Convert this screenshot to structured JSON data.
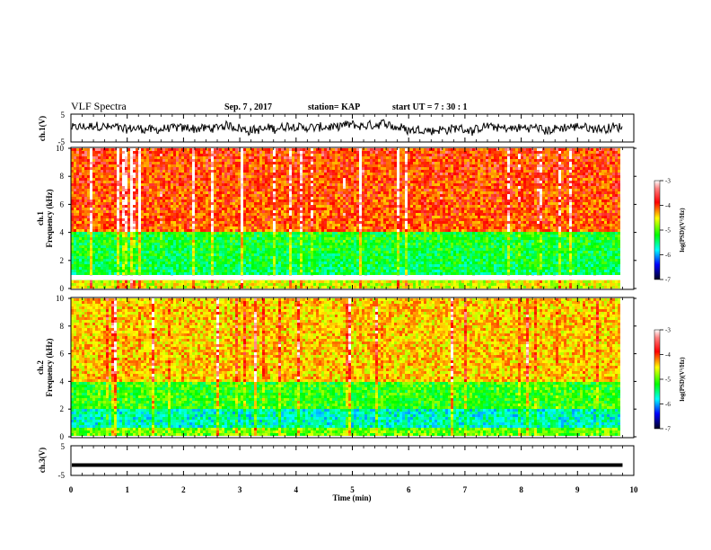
{
  "header": {
    "title": "VLF Spectra",
    "date": "Sep. 7 , 2017",
    "station": "station= KAP",
    "start": "start  UT  =   7 : 30 : 1"
  },
  "colorbar": {
    "label": "log(PSD)(V²/Hz)",
    "ticks": [
      "-3",
      "-4",
      "-5",
      "-6",
      "-7"
    ],
    "colors": [
      "#ffffff",
      "#ff0000",
      "#ffff00",
      "#00ff00",
      "#00ffff",
      "#0000ff",
      "#000000"
    ]
  },
  "chart_data": [
    {
      "type": "line",
      "ylabel": "ch.1(V)",
      "ylim": [
        -5,
        5
      ],
      "yticks": [
        "5",
        "-5"
      ],
      "xlim": [
        0,
        10
      ],
      "series_summary": "waveform oscillating about 0 V, amplitude ~±3 V"
    },
    {
      "type": "heatmap",
      "ylabel": "Frequency (kHz)",
      "channel_label": "ch.1",
      "ylim": [
        0,
        10
      ],
      "yticks": [
        "0",
        "2",
        "4",
        "6",
        "8",
        "10"
      ],
      "xlim": [
        0,
        10
      ],
      "bands": [
        {
          "from_khz": 0,
          "to_khz": 0.9,
          "level": "mixed yellow/green/red lines"
        },
        {
          "from_khz": 1,
          "to_khz": 4,
          "level": "-5 (green/cyan)"
        },
        {
          "from_khz": 4,
          "to_khz": 10,
          "level": "-3.5 (red/yellow)"
        }
      ]
    },
    {
      "type": "heatmap",
      "ylabel": "Frequency (kHz)",
      "channel_label": "ch.2",
      "ylim": [
        0,
        10
      ],
      "yticks": [
        "0",
        "2",
        "4",
        "6",
        "8",
        "10"
      ],
      "xlim": [
        0,
        10
      ],
      "bands": [
        {
          "from_khz": 0,
          "to_khz": 0.5,
          "level": "mixed"
        },
        {
          "from_khz": 0.5,
          "to_khz": 2,
          "level": "-5.5 (cyan/blue)"
        },
        {
          "from_khz": 2,
          "to_khz": 4,
          "level": "-4.8 (green)"
        },
        {
          "from_khz": 4,
          "to_khz": 10,
          "level": "-4 (yellow with red streaks)"
        }
      ]
    },
    {
      "type": "line",
      "ylabel": "ch.3(V)",
      "ylim": [
        -5,
        5
      ],
      "yticks": [
        "5",
        "-5"
      ],
      "xlim": [
        0,
        10
      ],
      "series_summary": "flat line at about -1.5 V"
    }
  ],
  "xaxis": {
    "label": "Time (min)",
    "ticks": [
      "0",
      "1",
      "2",
      "3",
      "4",
      "5",
      "6",
      "7",
      "8",
      "9",
      "10"
    ]
  }
}
